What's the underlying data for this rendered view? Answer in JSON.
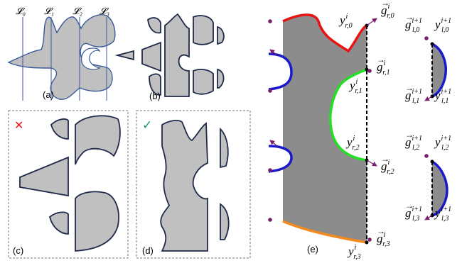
{
  "panels": {
    "a": {
      "label": "(a)",
      "lines": [
        "𝓛₀",
        "𝓛₁",
        "𝓛₂",
        "𝓛₃"
      ]
    },
    "b": {
      "label": "(b)"
    },
    "c": {
      "label": "(c)",
      "mark": "✕"
    },
    "d": {
      "label": "(d)",
      "mark": "✓"
    },
    "e": {
      "label": "(e)"
    }
  },
  "labels_e": {
    "y_r0": {
      "base": "y",
      "sup": "i",
      "sub": "r,0"
    },
    "y_r1": {
      "base": "y",
      "sup": "i",
      "sub": "r,1"
    },
    "y_r2": {
      "base": "y",
      "sup": "i",
      "sub": "r,2"
    },
    "y_r3": {
      "base": "y",
      "sup": "i",
      "sub": "r,3"
    },
    "g_r0": {
      "base": "g",
      "sup": "i",
      "sub": "r,0"
    },
    "g_r1": {
      "base": "g",
      "sup": "i",
      "sub": "r,1"
    },
    "g_r2": {
      "base": "g",
      "sup": "i",
      "sub": "r,2"
    },
    "g_r3": {
      "base": "g",
      "sup": "i",
      "sub": "r,3"
    },
    "g_l0": {
      "base": "g",
      "sup": "i+1",
      "sub": "l,0"
    },
    "g_l1": {
      "base": "g",
      "sup": "i+1",
      "sub": "l,1"
    },
    "g_l2": {
      "base": "g",
      "sup": "i+1",
      "sub": "l,2"
    },
    "g_l3": {
      "base": "g",
      "sup": "i+1",
      "sub": "l,3"
    },
    "y_l0": {
      "base": "y",
      "sup": "i+1",
      "sub": "l,0"
    },
    "y_l1": {
      "base": "y",
      "sup": "i+1",
      "sub": "l,1"
    },
    "y_l2": {
      "base": "y",
      "sup": "i+1",
      "sub": "l,2"
    },
    "y_l3": {
      "base": "y",
      "sup": "i+1",
      "sub": "l,3"
    }
  },
  "colors": {
    "fill_light": "#c0c0c0",
    "fill_dark": "#8c8c8c",
    "outline": "#1f2a4a",
    "red": "#e81414",
    "blue": "#1a1acc",
    "green": "#22e022",
    "orange": "#f28a1e",
    "point": "#7a1f6e",
    "cross": "#e81414",
    "check": "#1a9a5a"
  }
}
